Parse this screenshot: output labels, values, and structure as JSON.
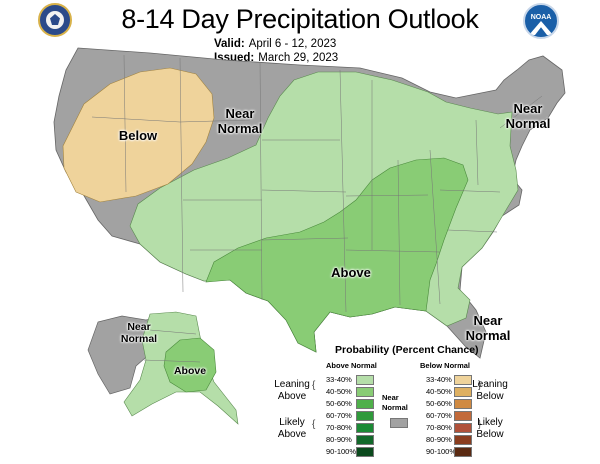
{
  "header": {
    "title": "8-14 Day Precipitation Outlook",
    "valid_label": "Valid:",
    "valid_value": "April 6 - 12, 2023",
    "issued_label": "Issued:",
    "issued_value": "March 29, 2023"
  },
  "logos": {
    "left": "seal-logo",
    "right": "noaa-logo",
    "noaa_text": "NOAA"
  },
  "map_labels": {
    "below": "Below",
    "near_normal_west": "Near Normal",
    "near_normal_northeast": "Near Normal",
    "above": "Above",
    "near_normal_southeast": "Near Normal",
    "near_normal_alaska": "Near Normal",
    "above_alaska": "Above"
  },
  "legend": {
    "title": "Probability (Percent Chance)",
    "above_header": "Above Normal",
    "below_header": "Below Normal",
    "near_label": "Near Normal",
    "leaning_above": "Leaning Above",
    "likely_above": "Likely Above",
    "leaning_below": "Leaning Below",
    "likely_below": "Likely Below",
    "above_bins": [
      {
        "range": "33-40%",
        "color": "#b5dea9"
      },
      {
        "range": "40-50%",
        "color": "#89cc75"
      },
      {
        "range": "50-60%",
        "color": "#4fb04a"
      },
      {
        "range": "60-70%",
        "color": "#2f9a3b"
      },
      {
        "range": "70-80%",
        "color": "#1b8a35"
      },
      {
        "range": "80-90%",
        "color": "#12692a"
      },
      {
        "range": "90-100%",
        "color": "#0b4a1d"
      }
    ],
    "below_bins": [
      {
        "range": "33-40%",
        "color": "#efd39b"
      },
      {
        "range": "40-50%",
        "color": "#deb061"
      },
      {
        "range": "50-60%",
        "color": "#d08a42"
      },
      {
        "range": "60-70%",
        "color": "#c26a3a"
      },
      {
        "range": "70-80%",
        "color": "#b0513a"
      },
      {
        "range": "80-90%",
        "color": "#8a3d1f"
      },
      {
        "range": "90-100%",
        "color": "#5a2a12"
      }
    ],
    "near_color": "#a2a2a2"
  }
}
